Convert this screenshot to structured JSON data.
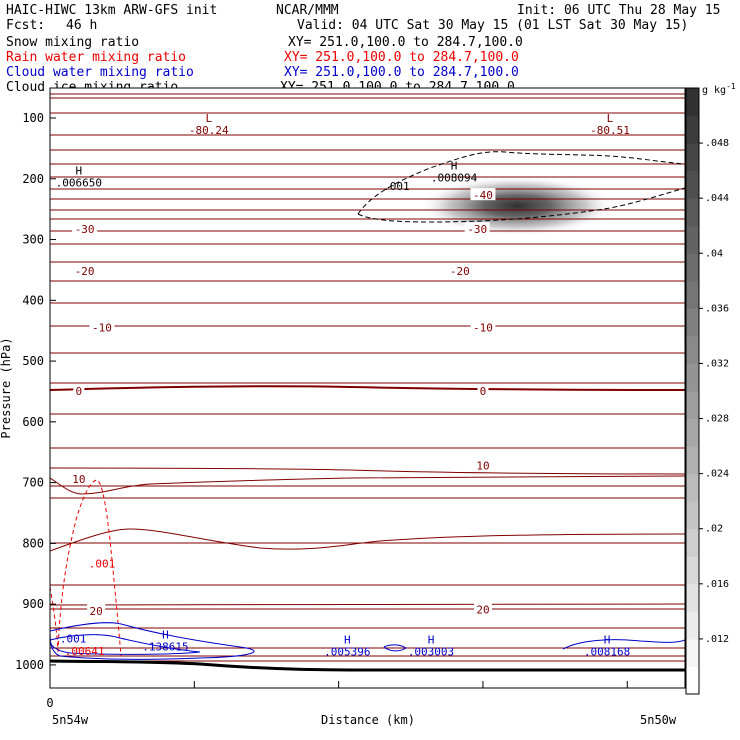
{
  "header": {
    "model": "HAIC-HIWC 13km ARW-GFS init",
    "org": "NCAR/MMM",
    "init": "Init: 06 UTC Thu 28 May 15",
    "fcst_label": "Fcst:",
    "fcst_value": "46 h",
    "valid": "Valid: 04 UTC Sat 30 May 15 (01 LST Sat 30 May 15)"
  },
  "fields": [
    {
      "name": "Snow mixing ratio",
      "xy": "XY= 251.0,100.0 to 284.7,100.0",
      "color": "#000000"
    },
    {
      "name": "Rain water mixing ratio",
      "xy": "XY= 251.0,100.0 to 284.7,100.0",
      "color": "#ee0000"
    },
    {
      "name": "Cloud water mixing ratio",
      "xy": "XY= 251.0,100.0 to 284.7,100.0",
      "color": "#0000cc"
    },
    {
      "name": "Cloud ice mixing ratio",
      "xy": "XY= 251.0,100.0 to 284.7,100.0",
      "color": "#000000"
    }
  ],
  "chart_data": {
    "type": "cross-section contour",
    "xlabel": "Distance (km)",
    "ylabel": "Pressure (hPa)",
    "y_ticks": [
      100,
      200,
      300,
      400,
      500,
      600,
      700,
      800,
      900,
      1000
    ],
    "ylim": [
      1050,
      65
    ],
    "xlim": [
      0,
      220
    ],
    "x_ticks": [
      0,
      50,
      100,
      150,
      200
    ],
    "x_tick_labels": [
      "0"
    ],
    "x_endpoint_labels": [
      "5n54w",
      "5n50w"
    ],
    "temperature_contour_color": "#800000",
    "temperature_labels": [
      {
        "text": "-30",
        "x": 12,
        "p": 283
      },
      {
        "text": "-30",
        "x": 148,
        "p": 283
      },
      {
        "text": "-20",
        "x": 12,
        "p": 352
      },
      {
        "text": "-20",
        "x": 142,
        "p": 352
      },
      {
        "text": "-10",
        "x": 18,
        "p": 445
      },
      {
        "text": "-10",
        "x": 150,
        "p": 445
      },
      {
        "text": "-40",
        "x": 150,
        "p": 227
      },
      {
        "text": "0",
        "x": 10,
        "p": 549
      },
      {
        "text": "0",
        "x": 150,
        "p": 549
      },
      {
        "text": "10",
        "x": 10,
        "p": 694
      },
      {
        "text": "10",
        "x": 150,
        "p": 672
      },
      {
        "text": "20",
        "x": 16,
        "p": 911
      },
      {
        "text": "20",
        "x": 150,
        "p": 909
      }
    ],
    "extrema_labels": [
      {
        "kind": "L",
        "value": "-80.24",
        "x": 55,
        "p": 110,
        "color": "#800000"
      },
      {
        "kind": "L",
        "value": "-80.51",
        "x": 194,
        "p": 110,
        "color": "#800000"
      },
      {
        "kind": "H",
        "value": ".006650",
        "x": 10,
        "p": 196,
        "color": "#000000"
      },
      {
        "kind": "H",
        "value": ".008094",
        "x": 140,
        "p": 188,
        "color": "#000000"
      },
      {
        "kind": "",
        "value": ".001",
        "x": 120,
        "p": 202,
        "color": "#000000"
      },
      {
        "kind": "",
        "value": ".001",
        "x": 18,
        "p": 823,
        "color": "#ee0000"
      },
      {
        "kind": "",
        "value": ".00641",
        "x": 12,
        "p": 967,
        "color": "#ee0000"
      },
      {
        "kind": "",
        "value": ".001",
        "x": 8,
        "p": 947,
        "color": "#0000cc"
      },
      {
        "kind": "H",
        "value": ".138615",
        "x": 40,
        "p": 960,
        "color": "#0000cc"
      },
      {
        "kind": "H",
        "value": ".005396",
        "x": 103,
        "p": 968,
        "color": "#0000cc"
      },
      {
        "kind": "H",
        "value": ".003003",
        "x": 132,
        "p": 968,
        "color": "#0000cc"
      },
      {
        "kind": "H",
        "value": ".008168",
        "x": 193,
        "p": 968,
        "color": "#0000cc"
      }
    ],
    "colorbar": {
      "unit": "g kg",
      "unit_exp": "-1",
      "ticks": [
        ".012",
        ".016",
        ".02",
        ".024",
        ".028",
        ".032",
        ".036",
        ".04",
        ".044",
        ".048"
      ],
      "range": [
        0.008,
        0.052
      ]
    },
    "ice_max_shading": {
      "x": 147,
      "p": 232,
      "max": 0.05
    }
  }
}
